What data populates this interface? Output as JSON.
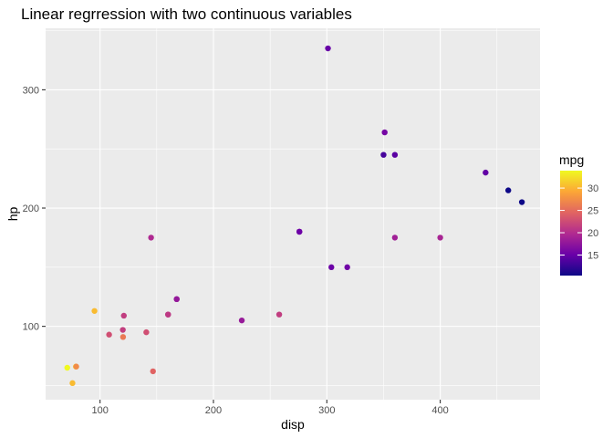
{
  "chart_data": {
    "type": "scatter",
    "title": "Linear regrression with two continuous variables",
    "xlabel": "disp",
    "ylabel": "hp",
    "xlim": [
      52,
      488
    ],
    "ylim": [
      38,
      352
    ],
    "x_ticks": [
      100,
      200,
      300,
      400
    ],
    "y_ticks": [
      100,
      200,
      300
    ],
    "grid": true,
    "legend": {
      "title": "mpg",
      "position": "right",
      "type": "colorbar",
      "range": [
        10.4,
        33.9
      ],
      "ticks": [
        15,
        20,
        25,
        30
      ],
      "colors": [
        "#0d0887",
        "#6a00a8",
        "#b12a90",
        "#e16462",
        "#fca636",
        "#f0f921"
      ]
    },
    "points": [
      {
        "x": 71.1,
        "y": 65,
        "mpg": 33.9
      },
      {
        "x": 75.7,
        "y": 52,
        "mpg": 30.4
      },
      {
        "x": 78.7,
        "y": 66,
        "mpg": 32.4
      },
      {
        "x": 79,
        "y": 66,
        "mpg": 27.3
      },
      {
        "x": 95.1,
        "y": 113,
        "mpg": 30.4
      },
      {
        "x": 108,
        "y": 93,
        "mpg": 22.8
      },
      {
        "x": 120.1,
        "y": 97,
        "mpg": 21.5
      },
      {
        "x": 120.3,
        "y": 91,
        "mpg": 26
      },
      {
        "x": 121,
        "y": 109,
        "mpg": 21.4
      },
      {
        "x": 140.8,
        "y": 95,
        "mpg": 22.8
      },
      {
        "x": 145,
        "y": 175,
        "mpg": 19.7
      },
      {
        "x": 146.7,
        "y": 62,
        "mpg": 24.4
      },
      {
        "x": 160,
        "y": 110,
        "mpg": 21
      },
      {
        "x": 160,
        "y": 110,
        "mpg": 21
      },
      {
        "x": 167.6,
        "y": 123,
        "mpg": 19.2
      },
      {
        "x": 167.6,
        "y": 123,
        "mpg": 17.8
      },
      {
        "x": 225,
        "y": 105,
        "mpg": 18.1
      },
      {
        "x": 258,
        "y": 110,
        "mpg": 21.4
      },
      {
        "x": 275.8,
        "y": 180,
        "mpg": 16.4
      },
      {
        "x": 275.8,
        "y": 180,
        "mpg": 17.3
      },
      {
        "x": 275.8,
        "y": 180,
        "mpg": 15.2
      },
      {
        "x": 301,
        "y": 335,
        "mpg": 15
      },
      {
        "x": 304,
        "y": 150,
        "mpg": 15.2
      },
      {
        "x": 318,
        "y": 150,
        "mpg": 15.5
      },
      {
        "x": 350,
        "y": 245,
        "mpg": 13.3
      },
      {
        "x": 351,
        "y": 264,
        "mpg": 15.8
      },
      {
        "x": 360,
        "y": 175,
        "mpg": 18.7
      },
      {
        "x": 360,
        "y": 245,
        "mpg": 14.3
      },
      {
        "x": 400,
        "y": 175,
        "mpg": 19.2
      },
      {
        "x": 440,
        "y": 230,
        "mpg": 14.7
      },
      {
        "x": 460,
        "y": 215,
        "mpg": 10.4
      },
      {
        "x": 472,
        "y": 205,
        "mpg": 10.4
      }
    ]
  }
}
